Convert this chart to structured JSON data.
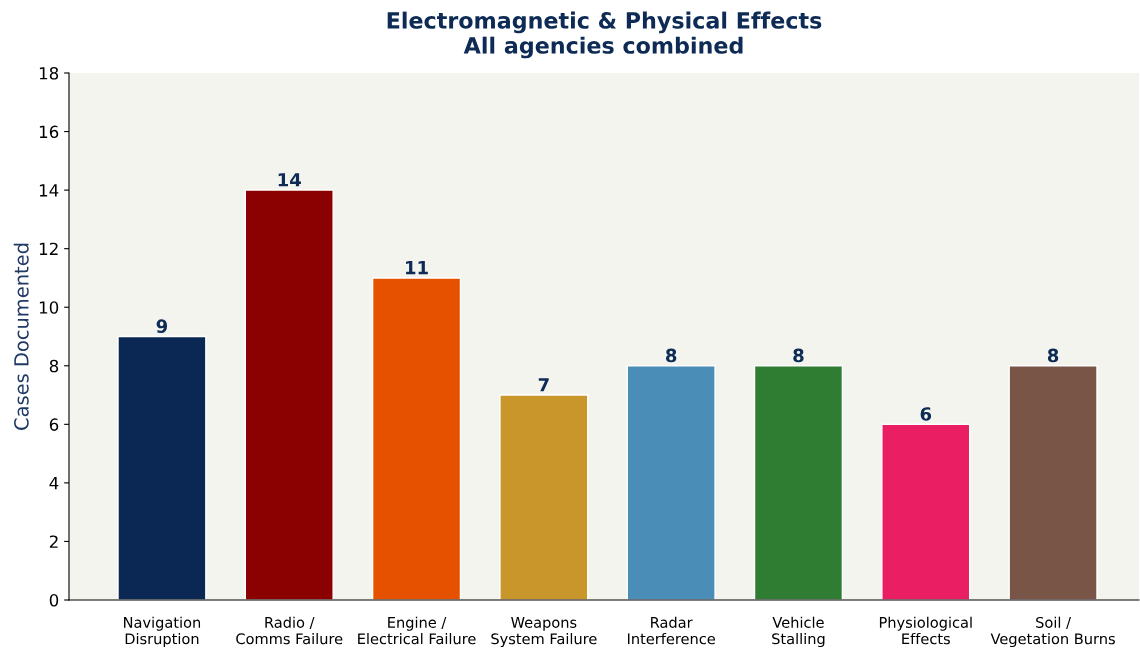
{
  "chart_data": {
    "type": "bar",
    "title": "Electromagnetic & Physical Effects\nAll agencies combined",
    "ylabel": "Cases Documented",
    "categories": [
      "Navigation\nDisruption",
      "Radio /\nComms Failure",
      "Engine /\nElectrical Failure",
      "Weapons\nSystem Failure",
      "Radar\nInterference",
      "Vehicle\nStalling",
      "Physiological\nEffects",
      "Soil /\nVegetation Burns"
    ],
    "values": [
      9,
      14,
      11,
      7,
      8,
      8,
      6,
      8
    ],
    "colors": [
      "#0b2855",
      "#8b0000",
      "#e65100",
      "#c8962a",
      "#4a8db7",
      "#2e7d32",
      "#e91e63",
      "#795548"
    ],
    "ylim": [
      0,
      18
    ],
    "yticks": [
      0,
      2,
      4,
      6,
      8,
      10,
      12,
      14,
      16,
      18
    ],
    "grid": false,
    "data_labels": true
  }
}
